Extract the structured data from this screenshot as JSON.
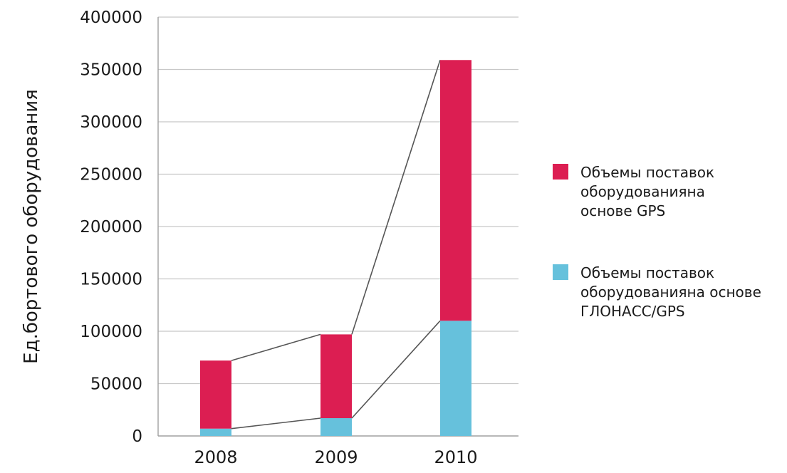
{
  "chart_data": {
    "type": "bar",
    "stacked": true,
    "title": "",
    "xlabel": "",
    "ylabel": "Ед.бортового оборудования",
    "categories": [
      "2008",
      "2009",
      "2010"
    ],
    "ylim": [
      0,
      400000
    ],
    "yticks": [
      "0",
      "50000",
      "100000",
      "150000",
      "200000",
      "250000",
      "300000",
      "350000",
      "400000"
    ],
    "grid": true,
    "legend_position": "right",
    "series": [
      {
        "name": "Объемы поставок оборудованияна основе ГЛОНАСС/GPS",
        "legend_lines": [
          "Объемы поставок",
          "оборудованияна основе",
          "ГЛОНАСС/GPS"
        ],
        "color": "#66c1dc",
        "values": [
          7000,
          17000,
          110000
        ]
      },
      {
        "name": "Объемы поставок оборудованияна основе GPS",
        "legend_lines": [
          "Объемы поставок",
          "оборудованияна",
          "основе GPS"
        ],
        "color": "#dc1e52",
        "values": [
          65000,
          80000,
          249000
        ]
      }
    ],
    "connector_lines": true
  }
}
